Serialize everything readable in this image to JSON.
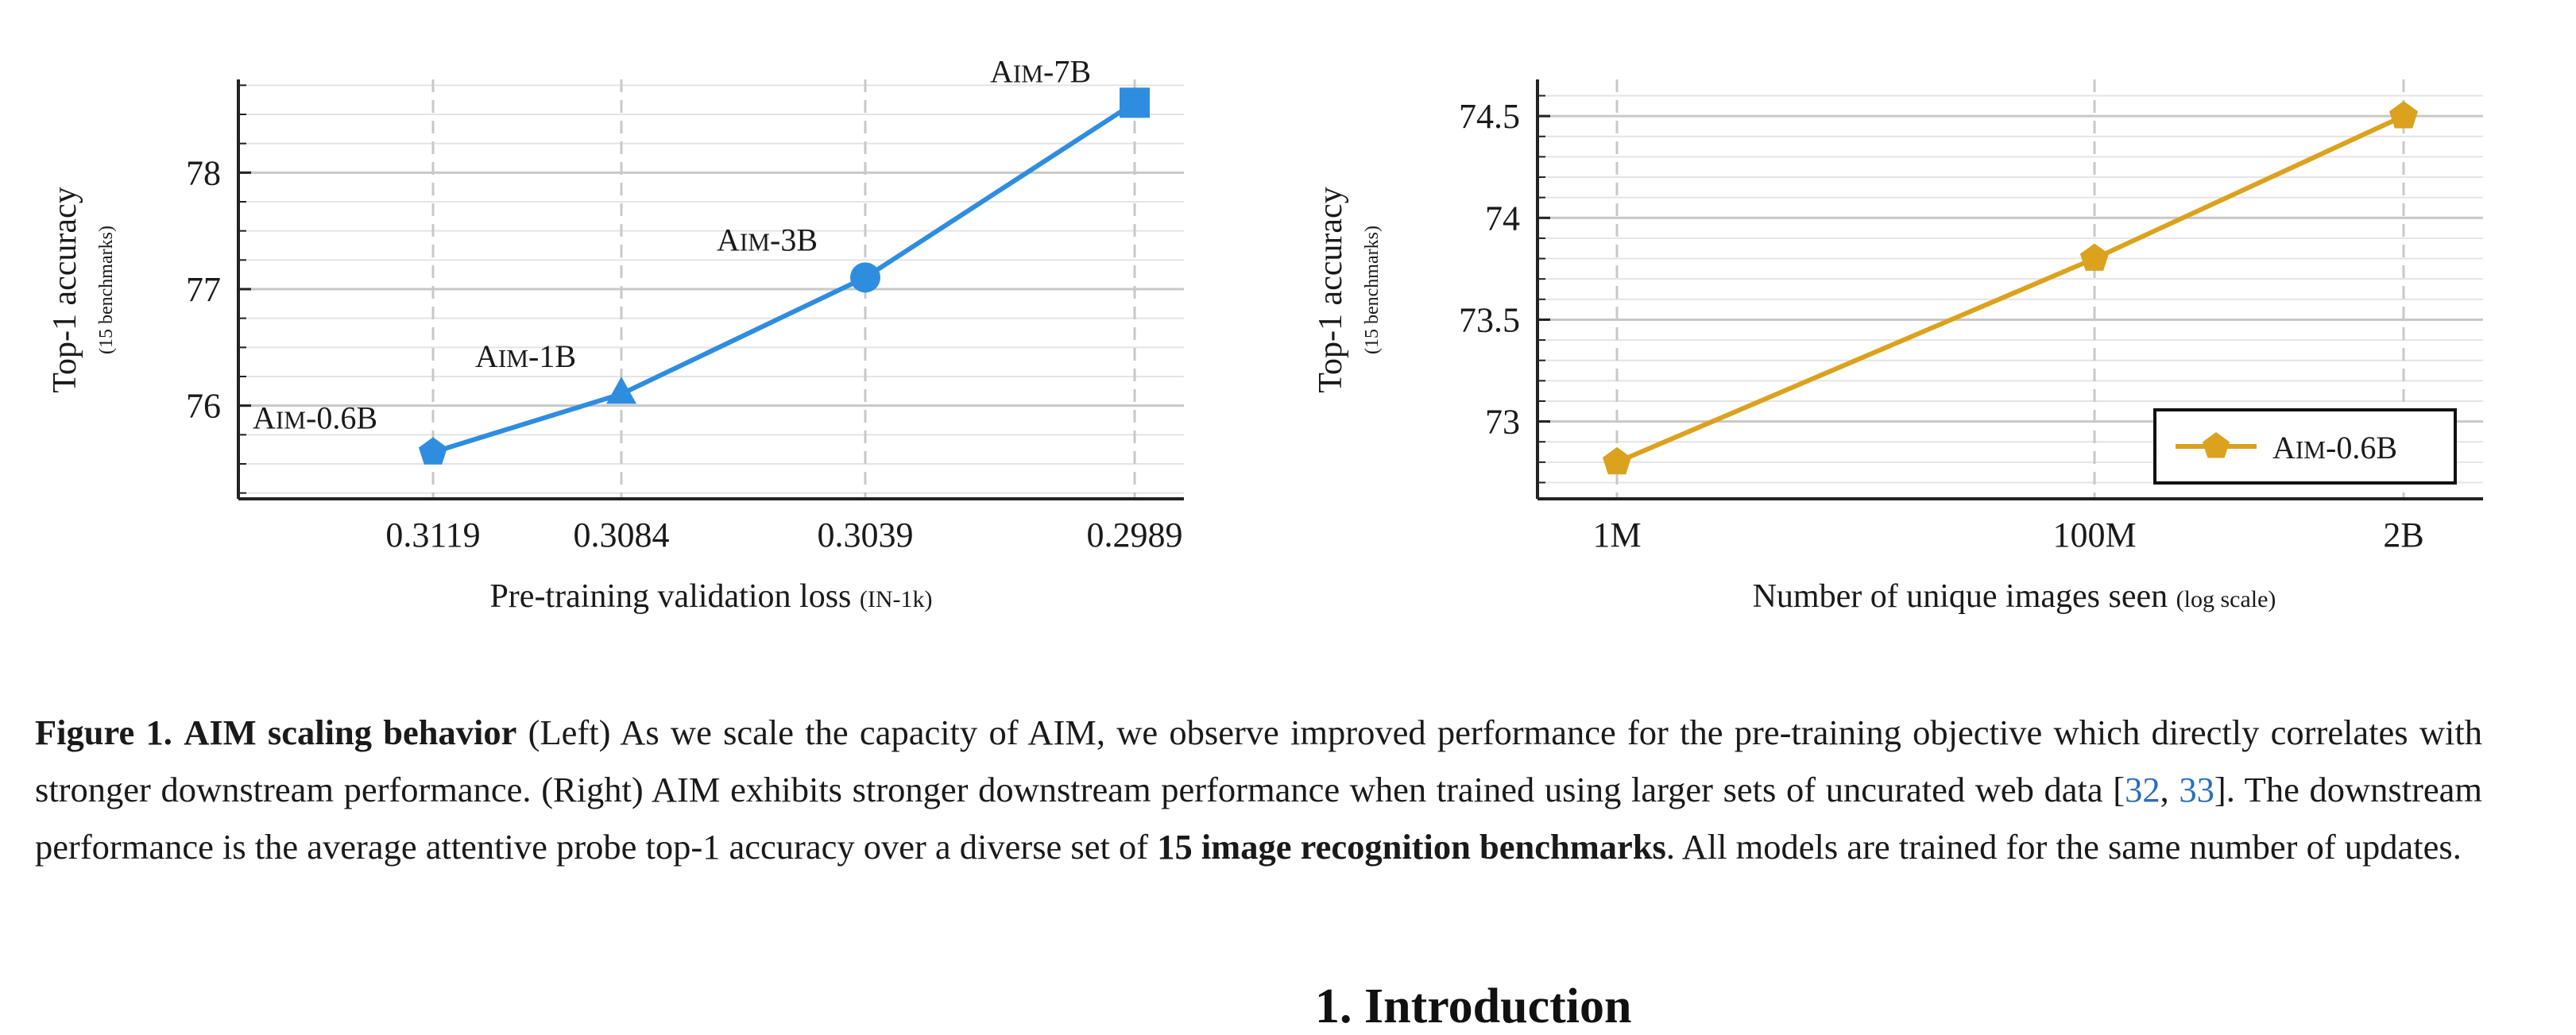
{
  "chart_data": [
    {
      "type": "line",
      "xlabel": "Pre-training validation loss",
      "xlabel_small": "(IN-1k)",
      "ylabel": "Top-1 accuracy",
      "ylabel_small": "(15 benchmarks)",
      "x_tick_labels": [
        "0.3119",
        "0.3084",
        "0.3039",
        "0.2989"
      ],
      "x_reversed": true,
      "y_ticks": [
        76,
        77,
        78
      ],
      "ylim": [
        75.2,
        78.8
      ],
      "grid": true,
      "color": "#2f8ddf",
      "points": [
        {
          "label": "AIM-0.6B",
          "x": 0.3119,
          "y": 75.6,
          "marker": "pentagon"
        },
        {
          "label": "AIM-1B",
          "x": 0.3084,
          "y": 76.1,
          "marker": "triangle"
        },
        {
          "label": "AIM-3B",
          "x": 0.3039,
          "y": 77.1,
          "marker": "circle"
        },
        {
          "label": "AIM-7B",
          "x": 0.2989,
          "y": 78.6,
          "marker": "square"
        }
      ]
    },
    {
      "type": "line",
      "xlabel": "Number of unique images seen",
      "xlabel_small": "(log scale)",
      "ylabel": "Top-1 accuracy",
      "ylabel_small": "(15 benchmarks)",
      "x_scale": "log",
      "categories": [
        "1M",
        "100M",
        "2B"
      ],
      "y_ticks": [
        73,
        73.5,
        74,
        74.5
      ],
      "ylim": [
        72.62,
        74.68
      ],
      "grid": true,
      "legend": "bottom-right",
      "series": [
        {
          "name": "AIM-0.6B",
          "color": "#dba21e",
          "marker": "pentagon",
          "values": [
            72.8,
            73.8,
            74.5
          ]
        }
      ]
    }
  ],
  "caption": {
    "fig_label": "Figure 1.",
    "title": "AIM scaling behavior",
    "seg1": " (Left) As we scale the capacity of AIM, we observe improved performance for the pre-training objective which directly correlates with stronger downstream performance.  (Right) AIM exhibits stronger downstream performance when trained using larger sets of uncurated web data [",
    "cite1": "32",
    "sep": ", ",
    "cite2": "33",
    "seg2": "]. The downstream performance is the average attentive probe top-1 accuracy over a diverse set of ",
    "bold2": "15 image recognition benchmarks",
    "seg3": ". All models are trained for the same number of updates."
  },
  "section_heading": "1. Introduction"
}
